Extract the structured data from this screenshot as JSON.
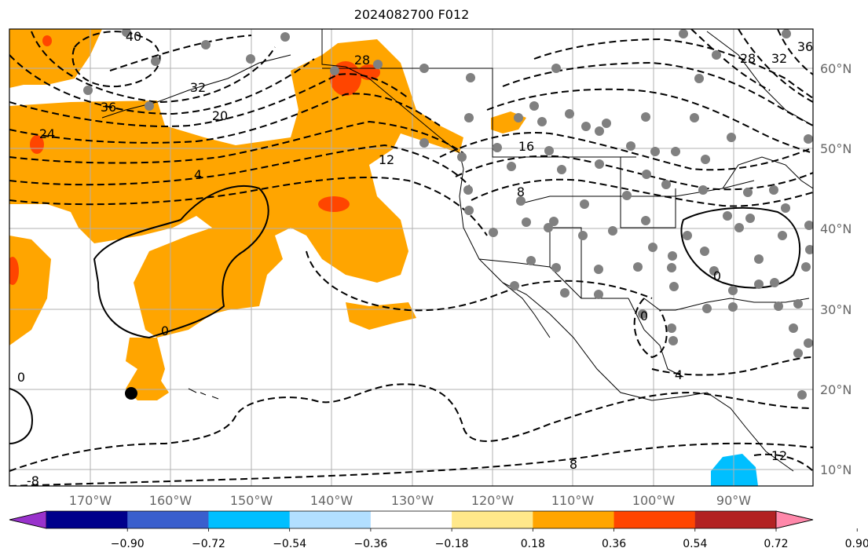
{
  "title": "2024082700 F012",
  "lon_labels": [
    "170°W",
    "160°W",
    "150°W",
    "140°W",
    "130°W",
    "120°W",
    "110°W",
    "100°W",
    "90°W"
  ],
  "lat_labels": [
    "60°N",
    "50°N",
    "40°N",
    "30°N",
    "20°N",
    "10°N"
  ],
  "colorbar": {
    "colors": [
      "#9932cc",
      "#00008b",
      "#3a5fcd",
      "#00bfff",
      "#b2dfff",
      "#ffffff",
      "#ffe88a",
      "#ffa500",
      "#ff4500",
      "#b22222",
      "#ff88aa"
    ],
    "ticks": [
      "−0.90",
      "−0.72",
      "−0.54",
      "−0.36",
      "−0.18",
      "0.18",
      "0.36",
      "0.54",
      "0.72",
      "0.90"
    ]
  },
  "contour_labels": [
    "40",
    "36",
    "24",
    "32",
    "20",
    "28",
    "4",
    "12",
    "16",
    "8",
    "0",
    "0",
    "0",
    "4",
    "0",
    "8",
    "12",
    "-8",
    "28",
    "32",
    "36"
  ],
  "colors": {
    "shade_orange": "#ffa500",
    "shade_red": "#ff4500",
    "shade_cyan": "#00bfff",
    "station_dot": "#808080",
    "grid": "#b0b0b0"
  }
}
